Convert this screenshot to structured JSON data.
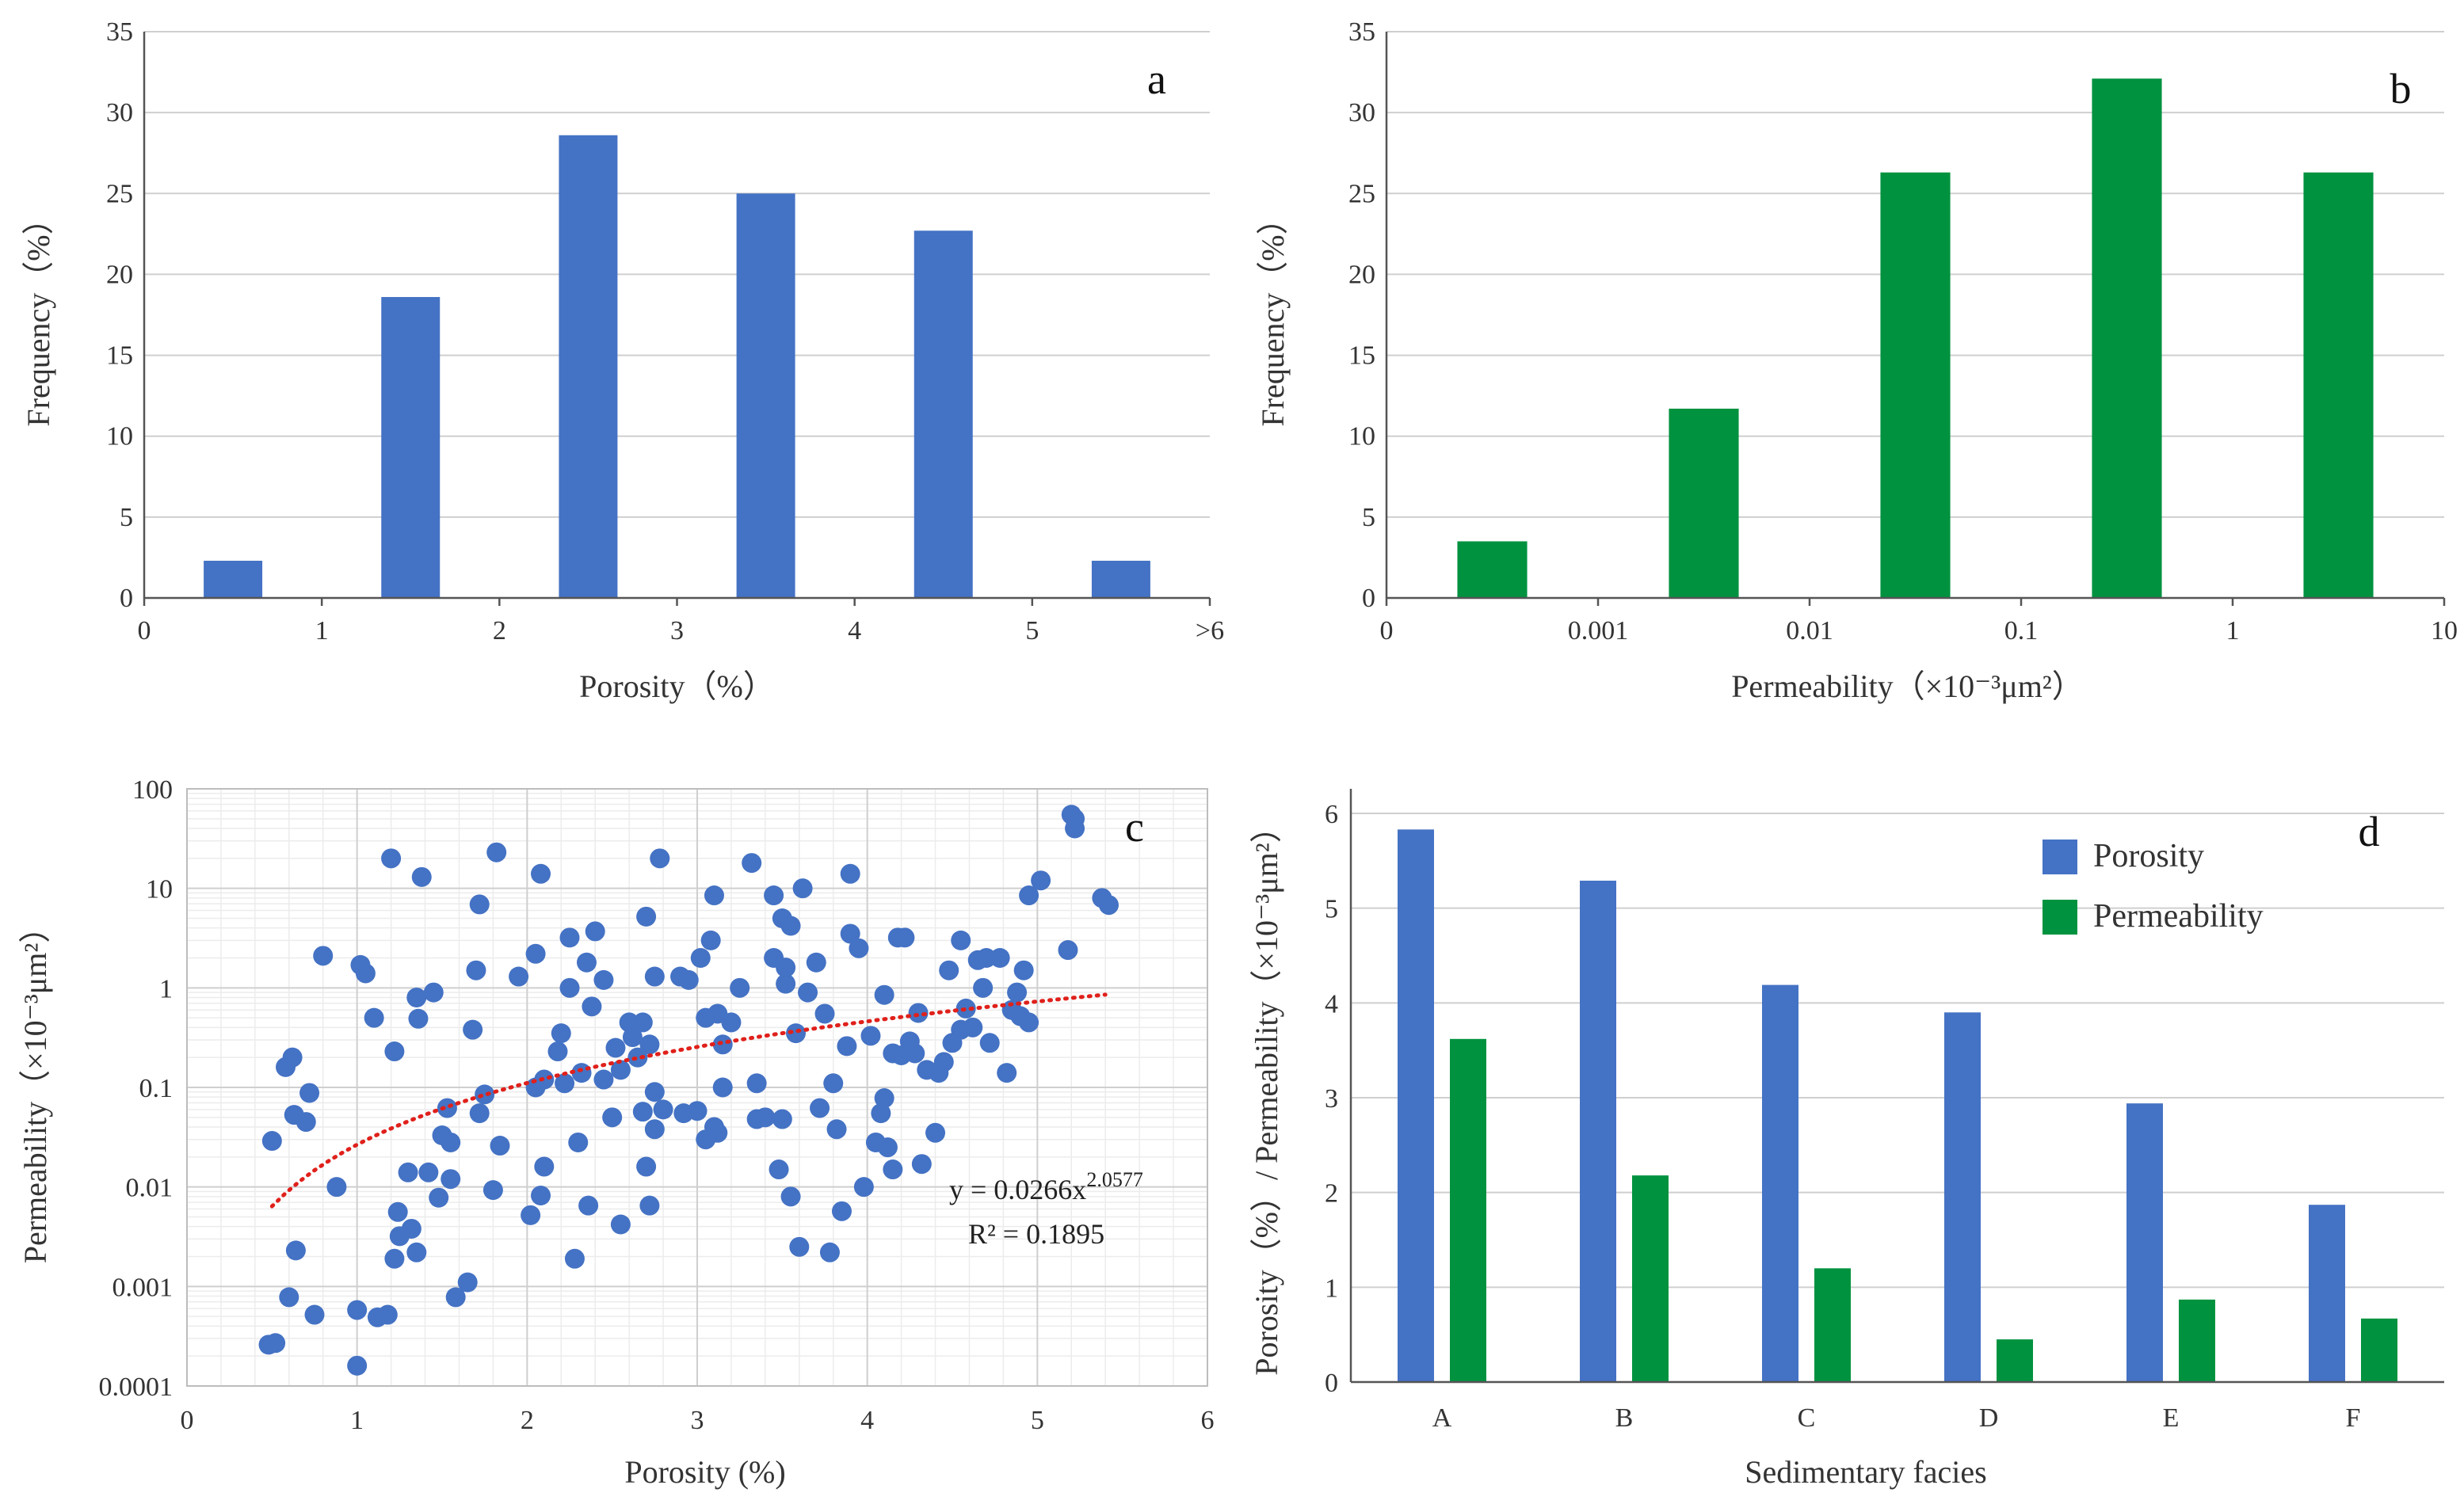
{
  "colors": {
    "blue": "#4472C4",
    "green": "#00923F",
    "trend": "#E0201B"
  },
  "chart_data": [
    {
      "id": "a",
      "panel_label": "a",
      "type": "bar",
      "title": "",
      "xlabel": "Porosity（%）",
      "ylabel": "Frequency（%）",
      "xticks": [
        "0",
        "1",
        "2",
        "3",
        "4",
        "5",
        ">6"
      ],
      "yticks": [
        "0",
        "5",
        "10",
        "15",
        "20",
        "25",
        "30",
        "35"
      ],
      "ylim": [
        0,
        35
      ],
      "bin_edges": [
        0,
        1,
        2,
        3,
        4,
        5,
        6
      ],
      "values": [
        2.3,
        18.6,
        28.6,
        25.0,
        22.7,
        2.3
      ],
      "color": "#4472C4"
    },
    {
      "id": "b",
      "panel_label": "b",
      "type": "bar",
      "title": "",
      "xlabel": "Permeability（×10⁻³μm²）",
      "ylabel": "Frequency（%）",
      "xticks": [
        "0",
        "0.001",
        "0.01",
        "0.1",
        "1",
        "10"
      ],
      "yticks": [
        "0",
        "5",
        "10",
        "15",
        "20",
        "25",
        "30",
        "35"
      ],
      "ylim": [
        0,
        35
      ],
      "bin_edges": [
        "0",
        "0.001",
        "0.01",
        "0.1",
        "1",
        "10"
      ],
      "values": [
        3.5,
        11.7,
        26.3,
        32.1,
        26.3
      ],
      "color": "#00923F"
    },
    {
      "id": "c",
      "panel_label": "c",
      "type": "scatter",
      "title": "",
      "xlabel": "Porosity (%)",
      "ylabel": "Permeability（×10⁻³μm²）",
      "xticks": [
        "0",
        "1",
        "2",
        "3",
        "4",
        "5",
        "6"
      ],
      "yticks": [
        "0.0001",
        "0.001",
        "0.01",
        "0.1",
        "1",
        "10",
        "100"
      ],
      "xlim": [
        0,
        6
      ],
      "ylim": [
        0.0001,
        100
      ],
      "yscale": "log",
      "trend": {
        "a": 0.0266,
        "b": 2.0577,
        "x_range": [
          0.5,
          5.4
        ]
      },
      "equation": "y = 0.0266x",
      "equation_exp": "2.0577",
      "r2": "R² = 0.1895",
      "points": [
        [
          0.48,
          0.00026
        ],
        [
          0.52,
          0.00027
        ],
        [
          0.5,
          0.029
        ],
        [
          0.58,
          0.16
        ],
        [
          0.62,
          0.2
        ],
        [
          0.6,
          0.00078
        ],
        [
          0.63,
          0.053
        ],
        [
          0.64,
          0.0023
        ],
        [
          0.7,
          0.045
        ],
        [
          0.72,
          0.088
        ],
        [
          0.75,
          0.00052
        ],
        [
          0.8,
          2.1
        ],
        [
          0.88,
          0.01
        ],
        [
          1.02,
          1.7
        ],
        [
          1.0,
          0.00058
        ],
        [
          1.0,
          0.00016
        ],
        [
          1.05,
          1.4
        ],
        [
          1.1,
          0.5
        ],
        [
          1.12,
          0.00049
        ],
        [
          1.18,
          0.00052
        ],
        [
          1.2,
          20
        ],
        [
          1.22,
          0.23
        ],
        [
          1.24,
          0.0056
        ],
        [
          1.22,
          0.0019
        ],
        [
          1.25,
          0.0032
        ],
        [
          1.32,
          0.0038
        ],
        [
          1.3,
          0.014
        ],
        [
          1.35,
          0.8
        ],
        [
          1.36,
          0.49
        ],
        [
          1.38,
          13
        ],
        [
          1.35,
          0.0022
        ],
        [
          1.42,
          0.014
        ],
        [
          1.45,
          0.9
        ],
        [
          1.48,
          0.0078
        ],
        [
          1.5,
          0.033
        ],
        [
          1.53,
          0.062
        ],
        [
          1.55,
          0.028
        ],
        [
          1.55,
          0.012
        ],
        [
          1.58,
          0.00078
        ],
        [
          1.65,
          0.0011
        ],
        [
          1.68,
          0.38
        ],
        [
          1.7,
          1.5
        ],
        [
          1.72,
          6.9
        ],
        [
          1.72,
          0.055
        ],
        [
          1.75,
          0.085
        ],
        [
          1.8,
          0.0093
        ],
        [
          1.82,
          23
        ],
        [
          1.84,
          0.026
        ],
        [
          1.95,
          1.3
        ],
        [
          2.02,
          0.0052
        ],
        [
          2.05,
          2.2
        ],
        [
          2.05,
          0.1
        ],
        [
          2.08,
          14
        ],
        [
          2.08,
          0.0082
        ],
        [
          2.1,
          0.12
        ],
        [
          2.1,
          0.016
        ],
        [
          2.18,
          0.23
        ],
        [
          2.2,
          0.35
        ],
        [
          2.22,
          0.11
        ],
        [
          2.25,
          1.0
        ],
        [
          2.25,
          3.2
        ],
        [
          2.28,
          0.0019
        ],
        [
          2.3,
          0.028
        ],
        [
          2.32,
          0.14
        ],
        [
          2.35,
          1.8
        ],
        [
          2.36,
          0.0065
        ],
        [
          2.38,
          0.65
        ],
        [
          2.4,
          3.7
        ],
        [
          2.45,
          0.12
        ],
        [
          2.45,
          1.2
        ],
        [
          2.5,
          0.05
        ],
        [
          2.52,
          0.25
        ],
        [
          2.55,
          0.15
        ],
        [
          2.55,
          0.0042
        ],
        [
          2.6,
          0.45
        ],
        [
          2.62,
          0.32
        ],
        [
          2.65,
          0.2
        ],
        [
          2.68,
          0.057
        ],
        [
          2.68,
          0.45
        ],
        [
          2.7,
          5.2
        ],
        [
          2.7,
          0.016
        ],
        [
          2.72,
          0.27
        ],
        [
          2.72,
          0.0065
        ],
        [
          2.75,
          0.09
        ],
        [
          2.75,
          1.3
        ],
        [
          2.75,
          0.038
        ],
        [
          2.78,
          20
        ],
        [
          2.8,
          0.06
        ],
        [
          2.9,
          1.3
        ],
        [
          2.92,
          0.055
        ],
        [
          2.95,
          1.2
        ],
        [
          3.0,
          0.058
        ],
        [
          3.02,
          2.0
        ],
        [
          3.05,
          0.5
        ],
        [
          3.05,
          0.03
        ],
        [
          3.08,
          3.0
        ],
        [
          3.1,
          0.04
        ],
        [
          3.1,
          8.5
        ],
        [
          3.12,
          0.035
        ],
        [
          3.12,
          0.55
        ],
        [
          3.15,
          0.27
        ],
        [
          3.15,
          0.1
        ],
        [
          3.2,
          0.45
        ],
        [
          3.25,
          1.0
        ],
        [
          3.32,
          18
        ],
        [
          3.35,
          0.11
        ],
        [
          3.35,
          0.048
        ],
        [
          3.4,
          0.05
        ],
        [
          3.45,
          2.0
        ],
        [
          3.45,
          8.5
        ],
        [
          3.48,
          0.015
        ],
        [
          3.5,
          5.0
        ],
        [
          3.5,
          0.048
        ],
        [
          3.52,
          1.1
        ],
        [
          3.52,
          1.6
        ],
        [
          3.55,
          4.2
        ],
        [
          3.55,
          0.008
        ],
        [
          3.58,
          0.35
        ],
        [
          3.6,
          0.0025
        ],
        [
          3.62,
          10
        ],
        [
          3.65,
          0.9
        ],
        [
          3.7,
          1.8
        ],
        [
          3.72,
          0.062
        ],
        [
          3.75,
          0.55
        ],
        [
          3.78,
          0.0022
        ],
        [
          3.8,
          0.11
        ],
        [
          3.82,
          0.038
        ],
        [
          3.85,
          0.0057
        ],
        [
          3.88,
          0.26
        ],
        [
          3.9,
          3.5
        ],
        [
          3.9,
          14
        ],
        [
          3.95,
          2.5
        ],
        [
          3.98,
          0.01
        ],
        [
          4.02,
          0.33
        ],
        [
          4.05,
          0.028
        ],
        [
          4.08,
          0.055
        ],
        [
          4.1,
          0.85
        ],
        [
          4.1,
          0.078
        ],
        [
          4.12,
          0.025
        ],
        [
          4.15,
          0.22
        ],
        [
          4.15,
          0.015
        ],
        [
          4.18,
          3.2
        ],
        [
          4.2,
          0.21
        ],
        [
          4.22,
          3.2
        ],
        [
          4.25,
          0.29
        ],
        [
          4.28,
          0.22
        ],
        [
          4.3,
          0.56
        ],
        [
          4.32,
          0.017
        ],
        [
          4.35,
          0.15
        ],
        [
          4.4,
          0.035
        ],
        [
          4.42,
          0.14
        ],
        [
          4.45,
          0.18
        ],
        [
          4.48,
          1.5
        ],
        [
          4.5,
          0.28
        ],
        [
          4.55,
          3.0
        ],
        [
          4.55,
          0.38
        ],
        [
          4.58,
          0.62
        ],
        [
          4.62,
          0.4
        ],
        [
          4.65,
          1.9
        ],
        [
          4.68,
          1.0
        ],
        [
          4.7,
          2.0
        ],
        [
          4.72,
          0.28
        ],
        [
          4.78,
          2.0
        ],
        [
          4.82,
          0.14
        ],
        [
          4.85,
          0.6
        ],
        [
          4.88,
          0.9
        ],
        [
          4.9,
          0.52
        ],
        [
          4.92,
          1.5
        ],
        [
          4.95,
          0.45
        ],
        [
          4.95,
          8.5
        ],
        [
          5.02,
          12
        ],
        [
          5.18,
          2.4
        ],
        [
          5.2,
          55
        ],
        [
          5.22,
          40
        ],
        [
          5.22,
          50
        ],
        [
          5.38,
          8.0
        ],
        [
          5.42,
          6.8
        ]
      ],
      "color": "#4472C4"
    },
    {
      "id": "d",
      "panel_label": "d",
      "type": "bar",
      "title": "",
      "xlabel": "Sedimentary facies",
      "ylabel": "Porosity（%）/ Permeability（×10⁻³μm²）",
      "categories": [
        "A",
        "B",
        "C",
        "D",
        "E",
        "F"
      ],
      "yticks": [
        "0",
        "1",
        "2",
        "3",
        "4",
        "5",
        "6"
      ],
      "ylim": [
        0,
        6
      ],
      "series": [
        {
          "name": "Porosity",
          "values": [
            5.83,
            5.29,
            4.19,
            3.9,
            2.94,
            1.87
          ],
          "color": "#4472C4"
        },
        {
          "name": "Permeability",
          "values": [
            3.62,
            2.18,
            1.2,
            0.45,
            0.87,
            0.67
          ],
          "color": "#00923F"
        }
      ],
      "legend": "top-right"
    }
  ]
}
